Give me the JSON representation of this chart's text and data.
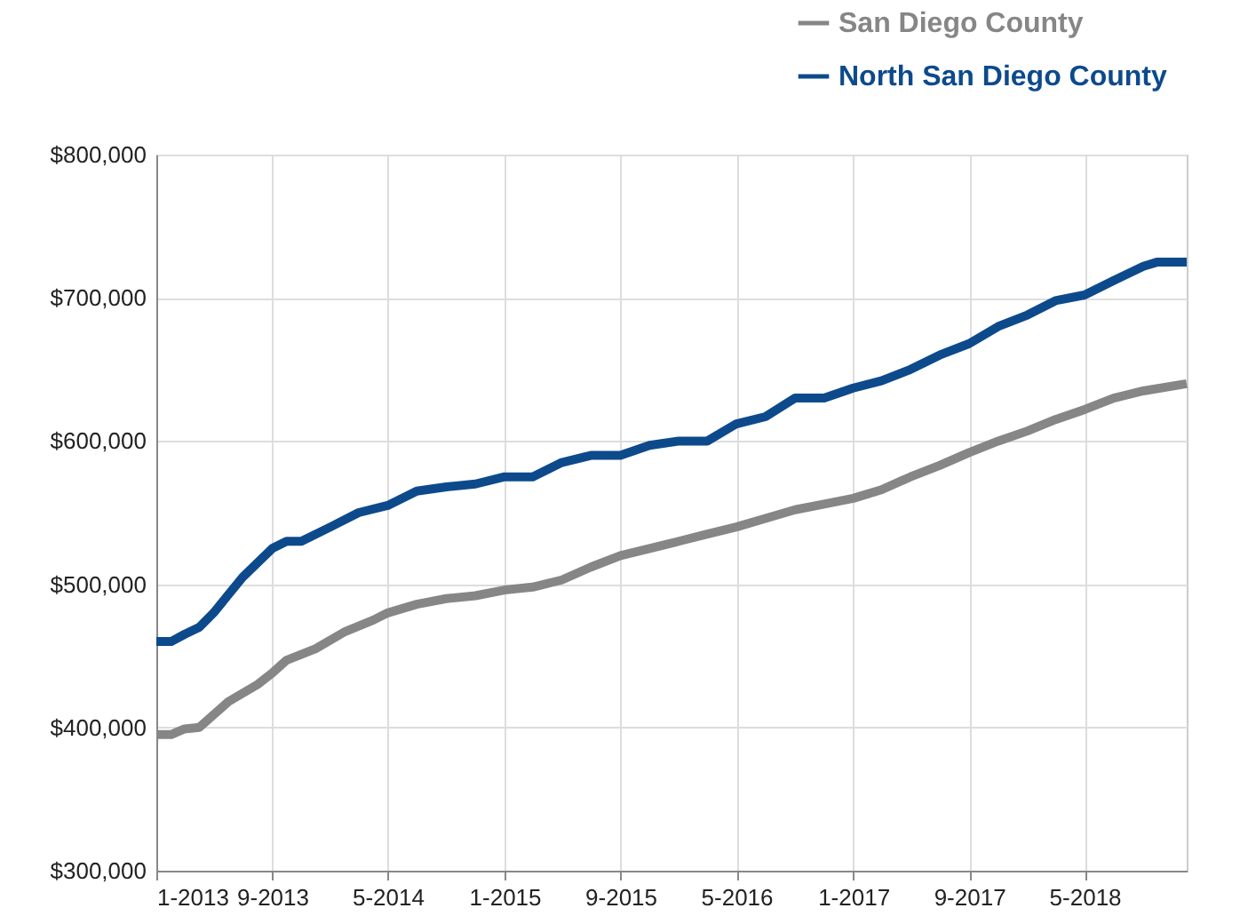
{
  "chart_data": {
    "type": "line",
    "legend": "top right",
    "grid": true,
    "line_style": "solid",
    "xlim": [
      "2013-01",
      "2018-12"
    ],
    "xticks": [
      {
        "value": "2013-01",
        "label": "1-2013"
      },
      {
        "value": "2013-09",
        "label": "9-2013"
      },
      {
        "value": "2014-05",
        "label": "5-2014"
      },
      {
        "value": "2015-01",
        "label": "1-2015"
      },
      {
        "value": "2015-09",
        "label": "9-2015"
      },
      {
        "value": "2016-05",
        "label": "5-2016"
      },
      {
        "value": "2017-01",
        "label": "1-2017"
      },
      {
        "value": "2017-09",
        "label": "9-2017"
      },
      {
        "value": "2018-05",
        "label": "5-2018"
      }
    ],
    "ylim": [
      300000,
      800000
    ],
    "yticks": [
      {
        "value": 300000,
        "label": "$300,000"
      },
      {
        "value": 400000,
        "label": "$400,000"
      },
      {
        "value": 500000,
        "label": "$500,000"
      },
      {
        "value": 600000,
        "label": "$600,000"
      },
      {
        "value": 700000,
        "label": "$700,000"
      },
      {
        "value": 800000,
        "label": "$800,000"
      }
    ],
    "series": [
      {
        "name": "San Diego County",
        "color": "#868686",
        "x": [
          "2013-01",
          "2013-02",
          "2013-03",
          "2013-04",
          "2013-06",
          "2013-08",
          "2013-09",
          "2013-10",
          "2013-12",
          "2014-02",
          "2014-04",
          "2014-05",
          "2014-07",
          "2014-09",
          "2014-11",
          "2015-01",
          "2015-03",
          "2015-05",
          "2015-07",
          "2015-09",
          "2015-11",
          "2016-01",
          "2016-03",
          "2016-05",
          "2016-07",
          "2016-09",
          "2016-11",
          "2017-01",
          "2017-03",
          "2017-05",
          "2017-07",
          "2017-09",
          "2017-11",
          "2018-01",
          "2018-03",
          "2018-05",
          "2018-07",
          "2018-09",
          "2018-12"
        ],
        "values": [
          395000,
          395000,
          399000,
          400000,
          418000,
          430000,
          438000,
          447000,
          455000,
          467000,
          475000,
          480000,
          486000,
          490000,
          492000,
          496000,
          498000,
          503000,
          512000,
          520000,
          525000,
          530000,
          535000,
          540000,
          546000,
          552000,
          556000,
          560000,
          566000,
          575000,
          583000,
          592000,
          600000,
          607000,
          615000,
          622000,
          630000,
          635000,
          640000
        ]
      },
      {
        "name": "North San Diego County",
        "color": "#0d4a8c",
        "x": [
          "2013-01",
          "2013-02",
          "2013-03",
          "2013-04",
          "2013-05",
          "2013-07",
          "2013-09",
          "2013-10",
          "2013-11",
          "2014-01",
          "2014-03",
          "2014-05",
          "2014-07",
          "2014-09",
          "2014-11",
          "2015-01",
          "2015-03",
          "2015-05",
          "2015-07",
          "2015-09",
          "2015-11",
          "2016-01",
          "2016-03",
          "2016-05",
          "2016-07",
          "2016-09",
          "2016-11",
          "2017-01",
          "2017-03",
          "2017-05",
          "2017-07",
          "2017-09",
          "2017-11",
          "2018-01",
          "2018-03",
          "2018-05",
          "2018-07",
          "2018-09",
          "2018-10",
          "2018-12"
        ],
        "values": [
          460000,
          460000,
          465000,
          470000,
          480000,
          505000,
          525000,
          530000,
          530000,
          540000,
          550000,
          555000,
          565000,
          568000,
          570000,
          575000,
          575000,
          585000,
          590000,
          590000,
          597000,
          600000,
          600000,
          612000,
          617000,
          630000,
          630000,
          637000,
          642000,
          650000,
          660000,
          668000,
          680000,
          688000,
          698000,
          702000,
          712000,
          722000,
          725000,
          725000
        ]
      }
    ]
  }
}
